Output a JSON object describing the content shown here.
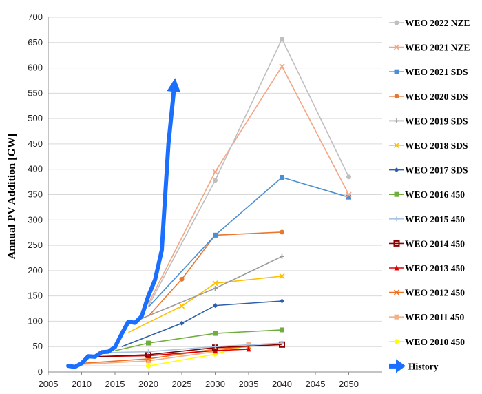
{
  "chart_data": {
    "type": "line",
    "title": "",
    "xlabel": "",
    "ylabel": "Annual PV Addition [GW]",
    "xlim": [
      2005,
      2055
    ],
    "ylim": [
      0,
      700
    ],
    "xticks": [
      2005,
      2010,
      2015,
      2020,
      2025,
      2030,
      2035,
      2040,
      2045,
      2050
    ],
    "yticks": [
      0,
      50,
      100,
      150,
      200,
      250,
      300,
      350,
      400,
      450,
      500,
      550,
      600,
      650,
      700
    ],
    "grid": "horizontal",
    "legend_position": "right",
    "series": [
      {
        "name": "WEO 2022 NZE",
        "color": "#BFBFBF",
        "marker": "circle",
        "x": [
          2020,
          2030,
          2040,
          2050
        ],
        "y": [
          130,
          378,
          657,
          385
        ]
      },
      {
        "name": "WEO 2021 NZE",
        "color": "#F4A582",
        "marker": "x",
        "x": [
          2020,
          2030,
          2040,
          2050
        ],
        "y": [
          135,
          395,
          603,
          350
        ]
      },
      {
        "name": "WEO 2021 SDS",
        "color": "#4A8FD4",
        "marker": "square",
        "x": [
          2020,
          2030,
          2040,
          2050
        ],
        "y": [
          128,
          270,
          384,
          345
        ]
      },
      {
        "name": "WEO 2020 SDS",
        "color": "#E87830",
        "marker": "circle",
        "x": [
          2020,
          2025,
          2030,
          2040
        ],
        "y": [
          110,
          183,
          270,
          276
        ]
      },
      {
        "name": "WEO 2019 SDS",
        "color": "#9A9A9A",
        "marker": "plus",
        "x": [
          2018,
          2030,
          2040
        ],
        "y": [
          100,
          165,
          228
        ]
      },
      {
        "name": "WEO 2018 SDS",
        "color": "#FFC000",
        "marker": "x",
        "x": [
          2017,
          2025,
          2030,
          2040
        ],
        "y": [
          78,
          130,
          175,
          189
        ]
      },
      {
        "name": "WEO 2017 SDS",
        "color": "#2E5FAA",
        "marker": "diamond",
        "x": [
          2016,
          2025,
          2030,
          2040
        ],
        "y": [
          50,
          96,
          131,
          140
        ]
      },
      {
        "name": "WEO 2016 450",
        "color": "#6FAE3C",
        "marker": "square",
        "x": [
          2015,
          2020,
          2030,
          2040
        ],
        "y": [
          42,
          57,
          76,
          83
        ]
      },
      {
        "name": "WEO 2015 450",
        "color": "#A9C4E0",
        "marker": "plus",
        "x": [
          2013,
          2020,
          2030,
          2040
        ],
        "y": [
          38,
          40,
          50,
          57
        ]
      },
      {
        "name": "WEO 2014 450",
        "color": "#8B0000",
        "marker": "square-open",
        "x": [
          2012,
          2020,
          2030,
          2040
        ],
        "y": [
          30,
          34,
          48,
          54
        ]
      },
      {
        "name": "WEO 2013 450",
        "color": "#E00000",
        "marker": "triangle",
        "x": [
          2011,
          2020,
          2030,
          2035
        ],
        "y": [
          30,
          32,
          42,
          45
        ]
      },
      {
        "name": "WEO 2012 450",
        "color": "#F07020",
        "marker": "x",
        "x": [
          2010,
          2020,
          2030,
          2035
        ],
        "y": [
          17,
          26,
          45,
          50
        ]
      },
      {
        "name": "WEO 2011 450",
        "color": "#F4B183",
        "marker": "square",
        "x": [
          2010,
          2020,
          2030,
          2035
        ],
        "y": [
          15,
          22,
          40,
          55
        ]
      },
      {
        "name": "WEO 2010 450",
        "color": "#FFFF00",
        "marker": "circle",
        "x": [
          2010,
          2020,
          2030,
          2035
        ],
        "y": [
          12,
          12,
          35,
          53
        ]
      },
      {
        "name": "History",
        "color": "#1A6FFF",
        "marker": "arrow",
        "x": [
          2008,
          2009,
          2010,
          2011,
          2012,
          2013,
          2014,
          2015,
          2016,
          2017,
          2018,
          2019,
          2020,
          2021,
          2022,
          2023,
          2024
        ],
        "y": [
          12,
          10,
          17,
          31,
          30,
          39,
          40,
          49,
          75,
          99,
          97,
          110,
          150,
          182,
          240,
          450,
          580
        ]
      }
    ]
  }
}
